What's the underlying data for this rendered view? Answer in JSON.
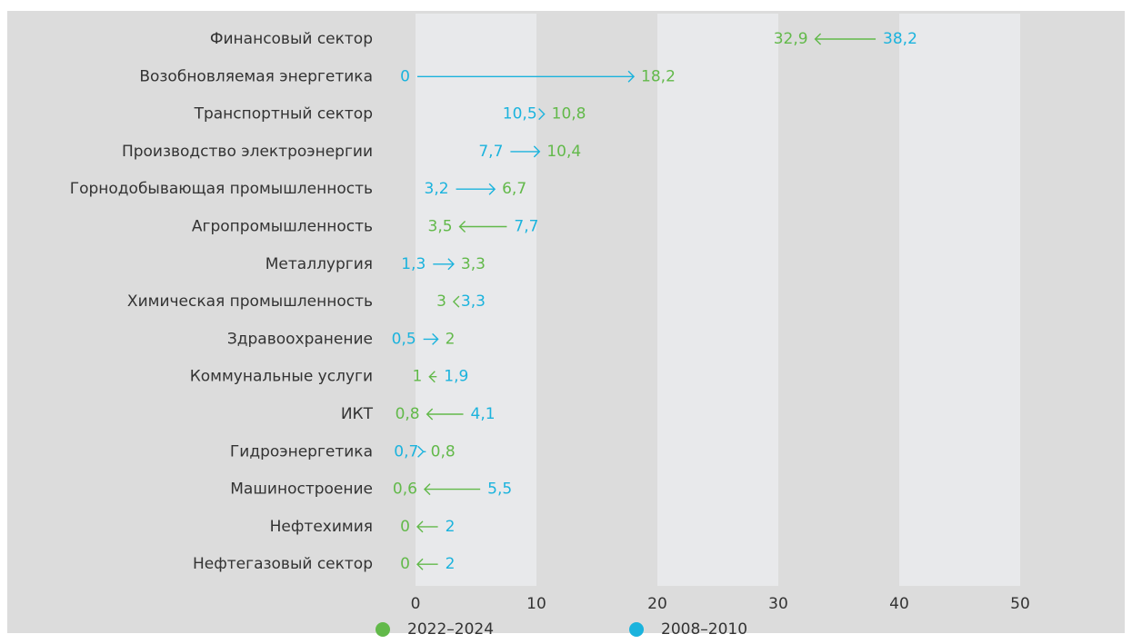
{
  "chart_data": {
    "type": "arrow",
    "categories": [
      "Финансовый сектор",
      "Возобновляемая энергетика",
      "Транспортный сектор",
      "Производство электроэнергии",
      "Горнодобывающая промышленность",
      "Агропромышленность",
      "Металлургия",
      "Химическая промышленность",
      "Здравоохранение",
      "Коммунальные услуги",
      "ИКТ",
      "Гидроэнергетика",
      "Машиностроение",
      "Нефтехимия",
      "Нефтегазовый сектор"
    ],
    "series": [
      {
        "name": "2022–2024",
        "color": "#62b94a",
        "values": [
          32.9,
          18.2,
          10.8,
          10.4,
          6.7,
          3.5,
          3.3,
          3,
          2,
          1,
          0.8,
          0.8,
          0.6,
          0,
          0
        ],
        "value_labels": [
          "32,9",
          "18,2",
          "10,8",
          "10,4",
          "6,7",
          "3,5",
          "3,3",
          "3",
          "2",
          "1",
          "0,8",
          "0,8",
          "0,6",
          "0",
          "0"
        ]
      },
      {
        "name": "2008–2010",
        "color": "#1bb3dd",
        "values": [
          38.2,
          0,
          10.5,
          7.7,
          3.2,
          7.7,
          1.3,
          3.3,
          0.5,
          1.9,
          4.1,
          0.7,
          5.5,
          2,
          2
        ],
        "value_labels": [
          "38,2",
          "0",
          "10,5",
          "7,7",
          "3,2",
          "7,7",
          "1,3",
          "3,3",
          "0,5",
          "1,9",
          "4,1",
          "0,7",
          "5,5",
          "2",
          "2"
        ]
      }
    ],
    "xlim": [
      0,
      50
    ],
    "xticks": [
      0,
      10,
      20,
      30,
      40,
      50
    ],
    "bands": true
  }
}
